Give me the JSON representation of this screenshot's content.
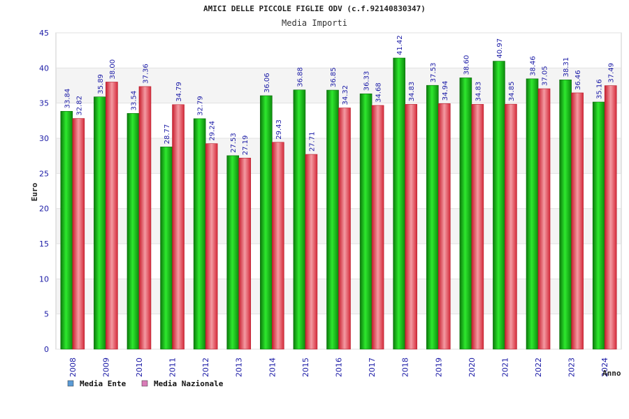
{
  "chart_data": {
    "type": "bar",
    "title": "AMICI DELLE PICCOLE FIGLIE ODV (c.f.92140830347)",
    "subtitle": "Media Importi",
    "xlabel": "Anno",
    "ylabel": "Euro",
    "ylim": [
      0,
      45
    ],
    "yticks": [
      0,
      5,
      10,
      15,
      20,
      25,
      30,
      35,
      40,
      45
    ],
    "grid": true,
    "legend_position": "bottom-left",
    "categories": [
      "2008",
      "2009",
      "2010",
      "2011",
      "2012",
      "2013",
      "2014",
      "2015",
      "2016",
      "2017",
      "2018",
      "2019",
      "2020",
      "2021",
      "2022",
      "2023",
      "2024"
    ],
    "series": [
      {
        "name": "Media Ente",
        "legend_color": "#5b9bd5",
        "bar_color": "#19b319",
        "values": [
          33.84,
          35.89,
          33.54,
          28.77,
          32.79,
          27.53,
          36.06,
          36.88,
          36.85,
          36.33,
          41.42,
          37.53,
          38.6,
          40.97,
          38.46,
          38.31,
          35.16
        ],
        "labels": [
          "33.84",
          "35.89",
          "33.54",
          "28.77",
          "32.79",
          "27.53",
          "36.06",
          "36.88",
          "36.85",
          "36.33",
          "41.42",
          "37.53",
          "38.60",
          "40.97",
          "38.46",
          "38.31",
          "35.16"
        ]
      },
      {
        "name": "Media Nazionale",
        "legend_color": "#d97bb7",
        "bar_color": "#e63d4d",
        "values": [
          32.82,
          38.0,
          37.36,
          34.79,
          29.24,
          27.19,
          29.43,
          27.71,
          34.32,
          34.68,
          34.83,
          34.94,
          34.83,
          34.85,
          37.05,
          36.46,
          37.49
        ],
        "labels": [
          "32.82",
          "38.00",
          "37.36",
          "34.79",
          "29.24",
          "27.19",
          "29.43",
          "27.71",
          "34.32",
          "34.68",
          "34.83",
          "34.94",
          "34.83",
          "34.85",
          "37.05",
          "36.46",
          "37.49"
        ]
      }
    ]
  }
}
